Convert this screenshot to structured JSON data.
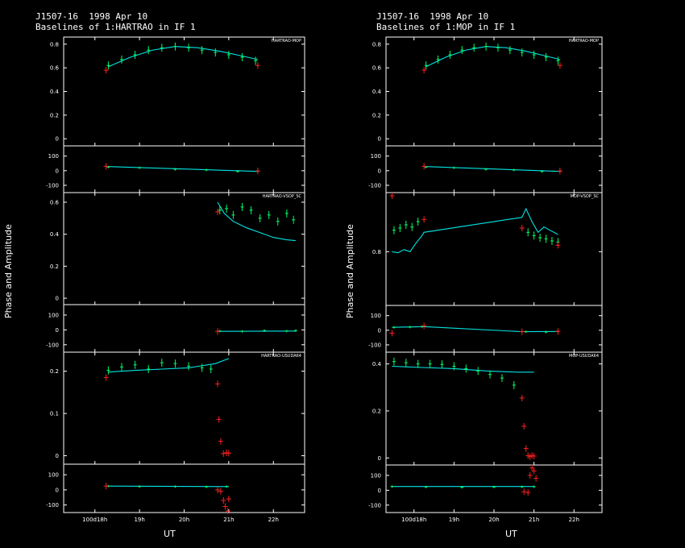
{
  "chart_data": [
    {
      "type": "line",
      "title": "J1507-16  1998 Apr 10",
      "subtitle": "Baselines of 1:HARTRAO in IF 1",
      "ylabel": "Phase and Amplitude",
      "xlabel": "UT",
      "x_ticks": [
        {
          "v": 18,
          "l": "100d18h"
        },
        {
          "v": 19,
          "l": "19h"
        },
        {
          "v": 20,
          "l": "20h"
        },
        {
          "v": 21,
          "l": "21h"
        },
        {
          "v": 22,
          "l": "22h"
        }
      ],
      "xlim": [
        17.3,
        22.7
      ],
      "colors": {
        "data": "#00ff66",
        "model": "#00e5e5",
        "flagged": "#ff2020",
        "axes": "#ffffff"
      },
      "panels": [
        {
          "label": "HARTRAO-MOP",
          "amp_ylim": [
            -0.06,
            0.86
          ],
          "amp_ticks": [
            0,
            0.2,
            0.4,
            0.6,
            0.8
          ],
          "phase_ylim": [
            -150,
            170
          ],
          "phase_ticks": [
            -100,
            0,
            100
          ],
          "amp_data": {
            "x": [
              18.3,
              18.6,
              18.9,
              19.2,
              19.5,
              19.8,
              20.1,
              20.4,
              20.7,
              21.0,
              21.3,
              21.6
            ],
            "y": [
              0.62,
              0.67,
              0.71,
              0.75,
              0.77,
              0.78,
              0.77,
              0.75,
              0.73,
              0.71,
              0.69,
              0.66
            ]
          },
          "amp_model": {
            "x": [
              18.3,
              18.8,
              19.3,
              19.8,
              20.3,
              20.8,
              21.3,
              21.65
            ],
            "y": [
              0.61,
              0.69,
              0.75,
              0.78,
              0.77,
              0.74,
              0.7,
              0.67
            ]
          },
          "amp_flagged": {
            "x": [
              18.25,
              21.65
            ],
            "y": [
              0.58,
              0.62
            ]
          },
          "phase_data": {
            "x": [
              18.3,
              19.0,
              19.8,
              20.5,
              21.2,
              21.65
            ],
            "y": [
              25,
              20,
              10,
              5,
              -5,
              -3
            ]
          },
          "phase_model": {
            "x": [
              18.3,
              21.65
            ],
            "y": [
              28,
              -5
            ]
          },
          "phase_flagged": {
            "x": [
              18.25,
              21.65
            ],
            "y": [
              30,
              -2
            ]
          }
        },
        {
          "label": "HARTRAO-VSOP_SC",
          "amp_ylim": [
            -0.04,
            0.66
          ],
          "amp_ticks": [
            0,
            0.2,
            0.4,
            0.6
          ],
          "phase_ylim": [
            -150,
            170
          ],
          "phase_ticks": [
            -100,
            0,
            100
          ],
          "amp_data": {
            "x": [
              20.8,
              20.95,
              21.1,
              21.3,
              21.5,
              21.7,
              21.9,
              22.1,
              22.3,
              22.45
            ],
            "y": [
              0.55,
              0.56,
              0.52,
              0.57,
              0.55,
              0.5,
              0.52,
              0.48,
              0.53,
              0.49
            ]
          },
          "amp_model": {
            "x": [
              20.75,
              20.9,
              21.1,
              21.4,
              21.7,
              22.0,
              22.3,
              22.5
            ],
            "y": [
              0.6,
              0.53,
              0.48,
              0.44,
              0.41,
              0.38,
              0.365,
              0.36
            ]
          },
          "amp_flagged": {
            "x": [
              20.75
            ],
            "y": [
              0.54
            ]
          },
          "phase_data": {
            "x": [
              20.8,
              21.3,
              21.8,
              22.3,
              22.5
            ],
            "y": [
              -8,
              -10,
              -5,
              -8,
              -5
            ]
          },
          "phase_model": {
            "x": [
              20.75,
              22.5
            ],
            "y": [
              -10,
              -8
            ]
          },
          "phase_flagged": {
            "x": [
              20.75
            ],
            "y": [
              -10
            ]
          }
        },
        {
          "label": "HARTRAO-USUDA64",
          "amp_ylim": [
            -0.02,
            0.245
          ],
          "amp_ticks": [
            0,
            0.1,
            0.2
          ],
          "phase_ylim": [
            -150,
            170
          ],
          "phase_ticks": [
            -100,
            0,
            100
          ],
          "amp_data": {
            "x": [
              18.3,
              18.6,
              18.9,
              19.2,
              19.5,
              19.8,
              20.1,
              20.4,
              20.6
            ],
            "y": [
              0.202,
              0.21,
              0.215,
              0.205,
              0.22,
              0.218,
              0.212,
              0.208,
              0.205
            ]
          },
          "amp_model": {
            "x": [
              18.3,
              18.9,
              19.5,
              20.1,
              20.7,
              21.0
            ],
            "y": [
              0.198,
              0.202,
              0.205,
              0.208,
              0.218,
              0.23
            ]
          },
          "amp_flagged": {
            "x": [
              18.25,
              20.75,
              20.78,
              20.82,
              20.88,
              20.95,
              21.0
            ],
            "y": [
              0.185,
              0.17,
              0.086,
              0.034,
              0.005,
              0.007,
              0.006
            ]
          },
          "phase_data": {
            "x": [
              18.3,
              19.0,
              19.8,
              20.5,
              20.95
            ],
            "y": [
              25,
              22,
              22,
              20,
              22
            ]
          },
          "phase_model": {
            "x": [
              18.3,
              21.0
            ],
            "y": [
              25,
              22
            ]
          },
          "phase_flagged": {
            "x": [
              18.25,
              20.75,
              20.82,
              20.88,
              20.92,
              20.98,
              21.0
            ],
            "y": [
              25,
              0,
              -10,
              -70,
              -110,
              -140,
              -60
            ]
          }
        }
      ]
    },
    {
      "type": "line",
      "title": "J1507-16  1998 Apr 10",
      "subtitle": "Baselines of 1:MOP in IF 1",
      "ylabel": "Phase and Amplitude",
      "xlabel": "UT",
      "x_ticks": [
        {
          "v": 18,
          "l": "100d18h"
        },
        {
          "v": 19,
          "l": "19h"
        },
        {
          "v": 20,
          "l": "20h"
        },
        {
          "v": 21,
          "l": "21h"
        },
        {
          "v": 22,
          "l": "22h"
        }
      ],
      "xlim": [
        17.3,
        22.7
      ],
      "colors": {
        "data": "#00ff66",
        "model": "#00e5e5",
        "flagged": "#ff2020",
        "axes": "#ffffff"
      },
      "panels": [
        {
          "label": "HARTRAO-MOP",
          "amp_ylim": [
            -0.06,
            0.86
          ],
          "amp_ticks": [
            0,
            0.2,
            0.4,
            0.6,
            0.8
          ],
          "phase_ylim": [
            -150,
            170
          ],
          "phase_ticks": [
            -100,
            0,
            100
          ],
          "amp_data": {
            "x": [
              18.3,
              18.6,
              18.9,
              19.2,
              19.5,
              19.8,
              20.1,
              20.4,
              20.7,
              21.0,
              21.3,
              21.6
            ],
            "y": [
              0.62,
              0.67,
              0.71,
              0.75,
              0.77,
              0.78,
              0.77,
              0.75,
              0.73,
              0.71,
              0.69,
              0.66
            ]
          },
          "amp_model": {
            "x": [
              18.3,
              18.8,
              19.3,
              19.8,
              20.3,
              20.8,
              21.3,
              21.65
            ],
            "y": [
              0.61,
              0.69,
              0.75,
              0.78,
              0.77,
              0.74,
              0.7,
              0.67
            ]
          },
          "amp_flagged": {
            "x": [
              18.25,
              21.65
            ],
            "y": [
              0.58,
              0.62
            ]
          },
          "phase_data": {
            "x": [
              18.3,
              19.0,
              19.8,
              20.5,
              21.2,
              21.65
            ],
            "y": [
              25,
              20,
              10,
              5,
              -5,
              -3
            ]
          },
          "phase_model": {
            "x": [
              18.3,
              21.65
            ],
            "y": [
              28,
              -5
            ]
          },
          "phase_flagged": {
            "x": [
              18.25,
              21.65
            ],
            "y": [
              30,
              -2
            ]
          }
        },
        {
          "label": "MOP-VSOP_SC",
          "amp_ylim": [
            0.3,
            1.35
          ],
          "amp_ticks": [
            0.8
          ],
          "phase_ylim": [
            -150,
            170
          ],
          "phase_ticks": [
            -100,
            0,
            100
          ],
          "amp_data": {
            "x": [
              17.5,
              17.65,
              17.8,
              17.95,
              18.1,
              20.85,
              21.0,
              21.15,
              21.3,
              21.45,
              21.6
            ],
            "y": [
              1.0,
              1.02,
              1.05,
              1.03,
              1.08,
              0.98,
              0.95,
              0.93,
              0.92,
              0.9,
              0.89
            ]
          },
          "amp_model": {
            "x": [
              17.45,
              17.6,
              17.75,
              17.9,
              18.05,
              18.2,
              18.25,
              20.7,
              20.8,
              20.95,
              21.1,
              21.25,
              21.4,
              21.6
            ],
            "y": [
              0.8,
              0.79,
              0.82,
              0.8,
              0.88,
              0.95,
              0.98,
              1.12,
              1.2,
              1.08,
              0.98,
              1.03,
              1.0,
              0.96
            ]
          },
          "amp_flagged": {
            "x": [
              17.45,
              18.25,
              20.7,
              21.6
            ],
            "y": [
              1.32,
              1.1,
              1.02,
              0.86
            ]
          },
          "phase_data": {
            "x": [
              17.5,
              17.9,
              18.2,
              20.8,
              21.3,
              21.6
            ],
            "y": [
              20,
              22,
              25,
              -10,
              -12,
              -8
            ]
          },
          "phase_model": {
            "x": [
              17.45,
              18.25,
              20.7,
              21.6
            ],
            "y": [
              20,
              25,
              -10,
              -8
            ]
          },
          "phase_flagged": {
            "x": [
              17.45,
              18.25,
              20.7,
              21.6
            ],
            "y": [
              -20,
              30,
              -10,
              -8
            ]
          }
        },
        {
          "label": "MOP-USUDA64",
          "amp_ylim": [
            -0.03,
            0.45
          ],
          "amp_ticks": [
            0,
            0.2,
            0.4
          ],
          "phase_ylim": [
            -150,
            170
          ],
          "phase_ticks": [
            -100,
            0,
            100
          ],
          "amp_data": {
            "x": [
              17.5,
              17.8,
              18.1,
              18.4,
              18.7,
              19.0,
              19.3,
              19.6,
              19.9,
              20.2,
              20.5
            ],
            "y": [
              0.41,
              0.405,
              0.4,
              0.4,
              0.398,
              0.39,
              0.38,
              0.37,
              0.355,
              0.34,
              0.31
            ]
          },
          "amp_model": {
            "x": [
              17.45,
              18.2,
              19.0,
              19.8,
              20.6,
              21.0
            ],
            "y": [
              0.39,
              0.385,
              0.38,
              0.37,
              0.365,
              0.365
            ]
          },
          "amp_flagged": {
            "x": [
              20.7,
              20.75,
              20.8,
              20.85,
              20.9,
              20.95,
              21.0
            ],
            "y": [
              0.255,
              0.135,
              0.04,
              0.01,
              0.005,
              0.01,
              0.008
            ]
          },
          "phase_data": {
            "x": [
              17.45,
              18.3,
              19.2,
              20.0,
              20.7,
              21.0
            ],
            "y": [
              25,
              22,
              20,
              22,
              23,
              24
            ]
          },
          "phase_model": {
            "x": [
              17.45,
              21.0
            ],
            "y": [
              25,
              25
            ]
          },
          "phase_flagged": {
            "x": [
              20.75,
              20.85,
              20.9,
              20.95,
              21.0,
              21.05
            ],
            "y": [
              -10,
              -15,
              100,
              150,
              130,
              80
            ]
          }
        }
      ]
    }
  ]
}
